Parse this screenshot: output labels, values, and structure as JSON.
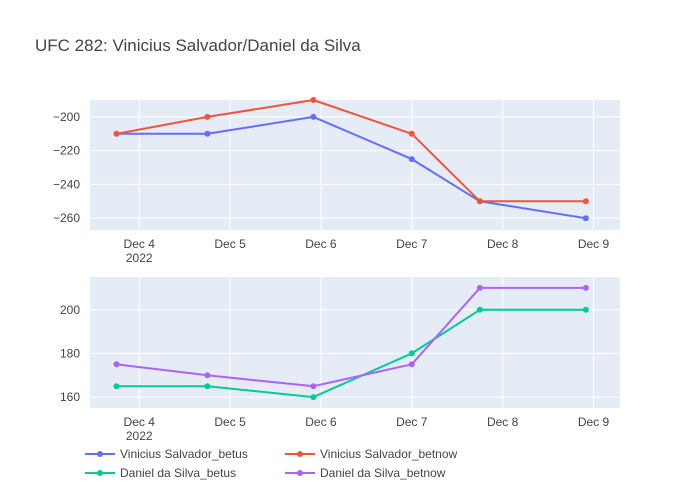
{
  "chart_data": {
    "type": "line",
    "title": "UFC 282: Vinicius Salvador/Daniel da Silva",
    "x_tick_labels": [
      {
        "date": "2022-12-04",
        "label": "Dec 4",
        "sublabel": "2022"
      },
      {
        "date": "2022-12-05",
        "label": "Dec 5",
        "sublabel": ""
      },
      {
        "date": "2022-12-06",
        "label": "Dec 6",
        "sublabel": ""
      },
      {
        "date": "2022-12-07",
        "label": "Dec 7",
        "sublabel": ""
      },
      {
        "date": "2022-12-08",
        "label": "Dec 8",
        "sublabel": ""
      },
      {
        "date": "2022-12-09",
        "label": "Dec 9",
        "sublabel": ""
      }
    ],
    "xlim": [
      "2022-12-03 11:00",
      "2022-12-09 07:00"
    ],
    "grid": true,
    "legend_position": "bottom",
    "subplots": [
      {
        "ylim": [
          -267,
          -190
        ],
        "y_ticks": [
          -200,
          -220,
          -240,
          -260
        ],
        "series": [
          {
            "name": "Vinicius Salvador_betus",
            "color": "#636efa",
            "x": [
              "2022-12-03 18:00",
              "2022-12-04 18:00",
              "2022-12-05 22:00",
              "2022-12-07 00:00",
              "2022-12-07 18:00",
              "2022-12-08 22:00"
            ],
            "y": [
              -210,
              -210,
              -200,
              -225,
              -250,
              -260
            ]
          },
          {
            "name": "Vinicius Salvador_betnow",
            "color": "#ef553b",
            "x": [
              "2022-12-03 18:00",
              "2022-12-04 18:00",
              "2022-12-05 22:00",
              "2022-12-07 00:00",
              "2022-12-07 18:00",
              "2022-12-08 22:00"
            ],
            "y": [
              -210,
              -200,
              -190,
              -210,
              -250,
              -250
            ]
          }
        ]
      },
      {
        "ylim": [
          155,
          215
        ],
        "y_ticks": [
          160,
          180,
          200
        ],
        "series": [
          {
            "name": "Daniel da Silva_betus",
            "color": "#00cc96",
            "x": [
              "2022-12-03 18:00",
              "2022-12-04 18:00",
              "2022-12-05 22:00",
              "2022-12-07 00:00",
              "2022-12-07 18:00",
              "2022-12-08 22:00"
            ],
            "y": [
              165,
              165,
              160,
              180,
              200,
              200
            ]
          },
          {
            "name": "Daniel da Silva_betnow",
            "color": "#ab63fa",
            "x": [
              "2022-12-03 18:00",
              "2022-12-04 18:00",
              "2022-12-05 22:00",
              "2022-12-07 00:00",
              "2022-12-07 18:00",
              "2022-12-08 22:00"
            ],
            "y": [
              175,
              170,
              165,
              175,
              210,
              210
            ]
          }
        ]
      }
    ]
  }
}
